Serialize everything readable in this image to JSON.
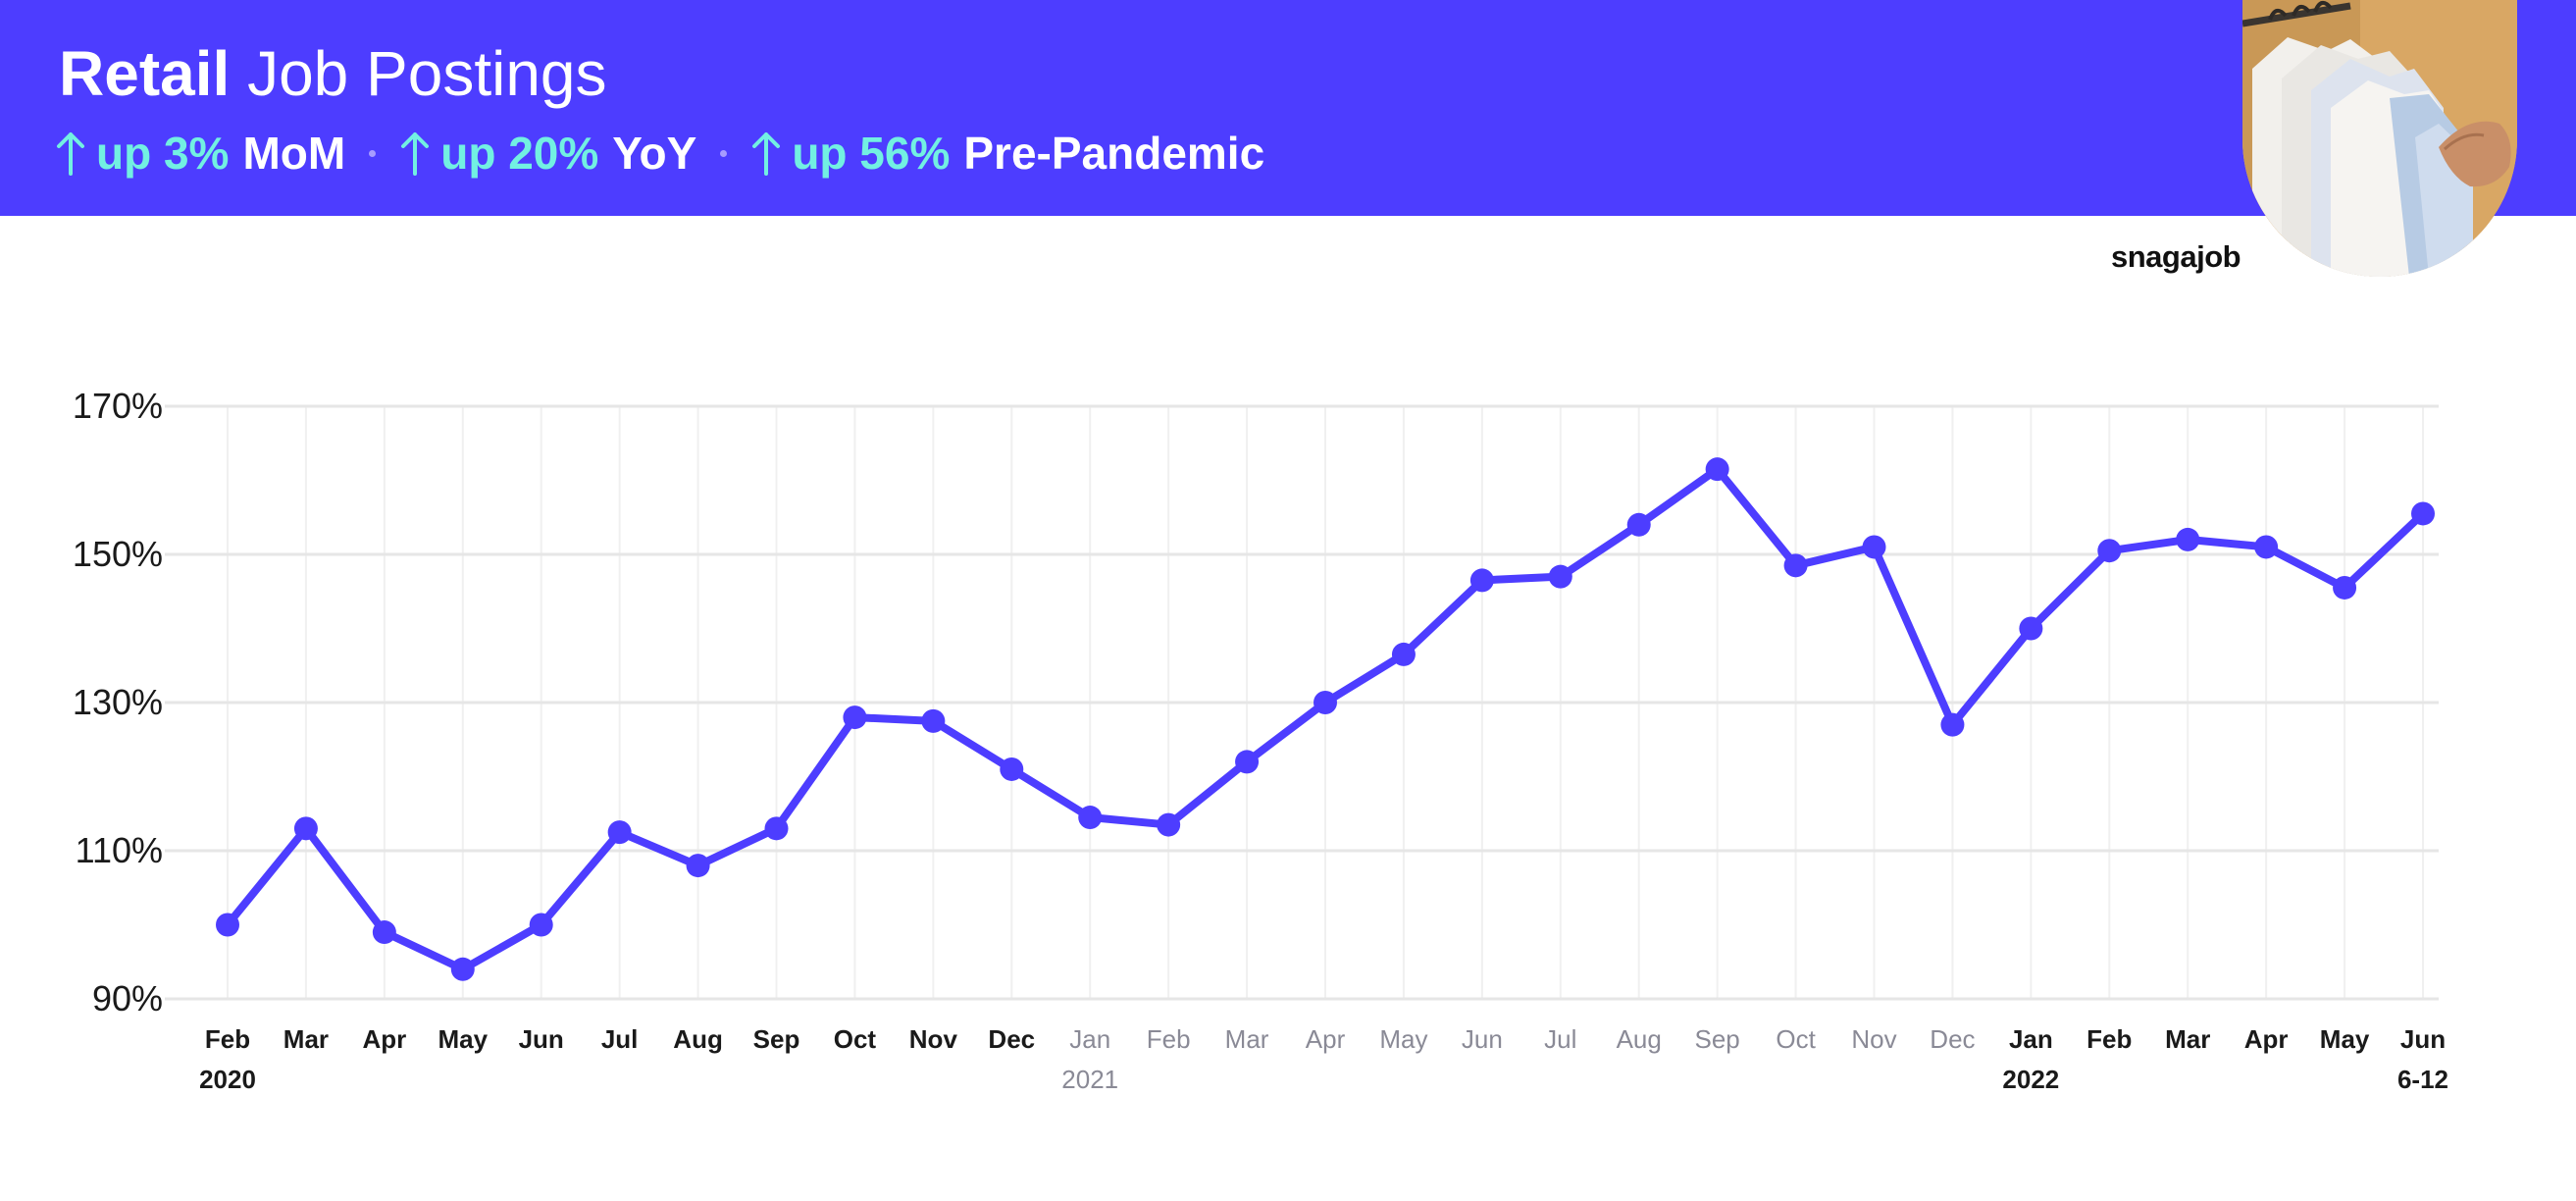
{
  "header": {
    "title_strong": "Retail",
    "title_rest": "Job Postings",
    "stats": [
      {
        "change": "up 3%",
        "metric": "MoM"
      },
      {
        "change": "up 20%",
        "metric": "YoY"
      },
      {
        "change": "up 56%",
        "metric": "Pre-Pandemic"
      }
    ]
  },
  "brand": "snagajob",
  "colors": {
    "banner": "#4d3dff",
    "line": "#4d3dff",
    "highlight": "#72f0e2",
    "grid": "#e6e6e6",
    "muted_label": "#8a8a96"
  },
  "chart_data": {
    "type": "line",
    "title": "",
    "xlabel": "",
    "ylabel": "",
    "ylim": [
      90,
      170
    ],
    "yticks": [
      "90%",
      "110%",
      "130%",
      "150%",
      "170%"
    ],
    "ytick_values": [
      90,
      110,
      130,
      150,
      170
    ],
    "grid": true,
    "categories": [
      {
        "month": "Feb",
        "sub": "2020",
        "muted": false
      },
      {
        "month": "Mar",
        "sub": "",
        "muted": false
      },
      {
        "month": "Apr",
        "sub": "",
        "muted": false
      },
      {
        "month": "May",
        "sub": "",
        "muted": false
      },
      {
        "month": "Jun",
        "sub": "",
        "muted": false
      },
      {
        "month": "Jul",
        "sub": "",
        "muted": false
      },
      {
        "month": "Aug",
        "sub": "",
        "muted": false
      },
      {
        "month": "Sep",
        "sub": "",
        "muted": false
      },
      {
        "month": "Oct",
        "sub": "",
        "muted": false
      },
      {
        "month": "Nov",
        "sub": "",
        "muted": false
      },
      {
        "month": "Dec",
        "sub": "",
        "muted": false
      },
      {
        "month": "Jan",
        "sub": "2021",
        "muted": true
      },
      {
        "month": "Feb",
        "sub": "",
        "muted": true
      },
      {
        "month": "Mar",
        "sub": "",
        "muted": true
      },
      {
        "month": "Apr",
        "sub": "",
        "muted": true
      },
      {
        "month": "May",
        "sub": "",
        "muted": true
      },
      {
        "month": "Jun",
        "sub": "",
        "muted": true
      },
      {
        "month": "Jul",
        "sub": "",
        "muted": true
      },
      {
        "month": "Aug",
        "sub": "",
        "muted": true
      },
      {
        "month": "Sep",
        "sub": "",
        "muted": true
      },
      {
        "month": "Oct",
        "sub": "",
        "muted": true
      },
      {
        "month": "Nov",
        "sub": "",
        "muted": true
      },
      {
        "month": "Dec",
        "sub": "",
        "muted": true
      },
      {
        "month": "Jan",
        "sub": "2022",
        "muted": false
      },
      {
        "month": "Feb",
        "sub": "",
        "muted": false
      },
      {
        "month": "Mar",
        "sub": "",
        "muted": false
      },
      {
        "month": "Apr",
        "sub": "",
        "muted": false
      },
      {
        "month": "May",
        "sub": "",
        "muted": false
      },
      {
        "month": "Jun",
        "sub": "6-12",
        "muted": false
      }
    ],
    "series": [
      {
        "values": [
          100,
          113,
          99,
          94,
          100,
          112.5,
          108,
          113,
          128,
          127.5,
          121,
          114.5,
          113.5,
          122,
          130,
          136.5,
          146.5,
          147,
          154,
          161.5,
          148.5,
          151,
          127,
          140,
          150.5,
          152,
          151,
          145.5,
          155.5
        ]
      }
    ]
  }
}
